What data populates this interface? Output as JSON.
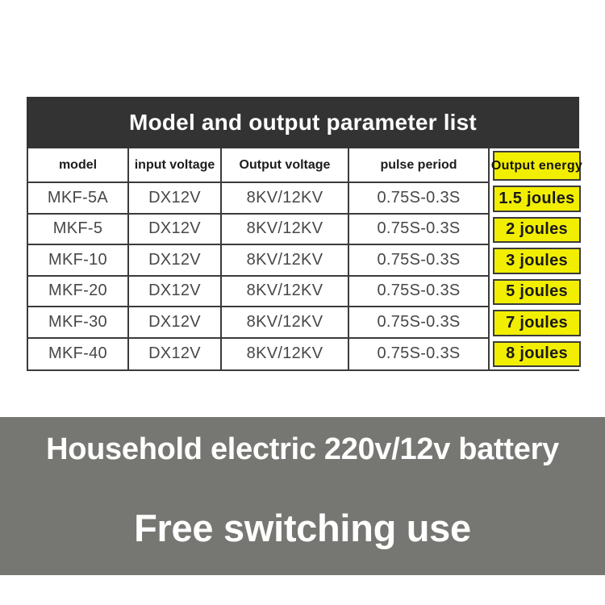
{
  "title": "Model and output parameter list",
  "table": {
    "headers": [
      "model",
      "input voltage",
      "Output voltage",
      "pulse period",
      "Output energy"
    ],
    "rows": [
      {
        "model": "MKF-5A",
        "input": "DX12V",
        "output": "8KV/12KV",
        "pulse": "0.75S-0.3S",
        "energy": "1.5 joules"
      },
      {
        "model": "MKF-5",
        "input": "DX12V",
        "output": "8KV/12KV",
        "pulse": "0.75S-0.3S",
        "energy": "2 joules"
      },
      {
        "model": "MKF-10",
        "input": "DX12V",
        "output": "8KV/12KV",
        "pulse": "0.75S-0.3S",
        "energy": "3 joules"
      },
      {
        "model": "MKF-20",
        "input": "DX12V",
        "output": "8KV/12KV",
        "pulse": "0.75S-0.3S",
        "energy": "5 joules"
      },
      {
        "model": "MKF-30",
        "input": "DX12V",
        "output": "8KV/12KV",
        "pulse": "0.75S-0.3S",
        "energy": "7 joules"
      },
      {
        "model": "MKF-40",
        "input": "DX12V",
        "output": "8KV/12KV",
        "pulse": "0.75S-0.3S",
        "energy": "8 joules"
      }
    ]
  },
  "banner": {
    "line1": "Household electric 220v/12v battery",
    "line2": "Free switching use"
  },
  "colors": {
    "title_bar_bg": "#333333",
    "title_text": "#ffffff",
    "highlight_yellow": "#f2ee00",
    "table_border": "#3b3b3b",
    "table_text": "#474747",
    "energy_text": "#1a1a1a",
    "banner_bg": "#767672",
    "banner_text": "#ffffff"
  }
}
